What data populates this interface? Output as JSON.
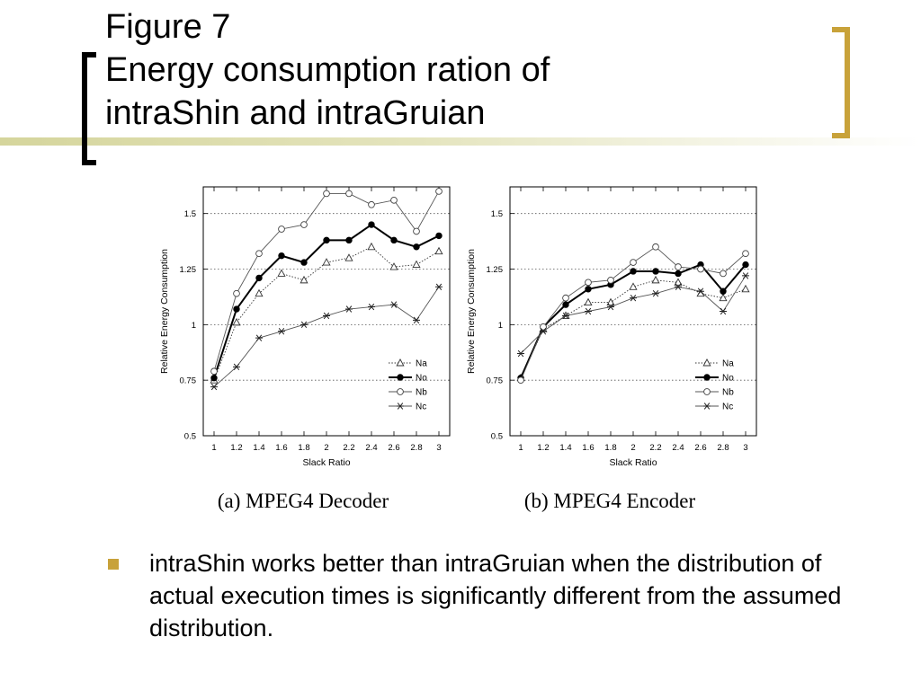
{
  "slide": {
    "title_line1": "Figure 7",
    "title_line2": "Energy consumption ration of",
    "title_line3": "intraShin and intraGruian",
    "bullet_text": "intraShin works better than intraGruian when the distribution of actual execution times is significantly different from the assumed distribution.",
    "colors": {
      "accent": "#c8a23a",
      "line": "#d5d59c"
    }
  },
  "chart_data": [
    {
      "type": "line",
      "caption": "(a) MPEG4 Decoder",
      "xlabel": "Slack Ratio",
      "ylabel": "Relative Energy Consumption",
      "x": [
        1,
        1.2,
        1.4,
        1.6,
        1.8,
        2,
        2.2,
        2.4,
        2.6,
        2.8,
        3
      ],
      "xticks": [
        "1",
        "1.2",
        "1.4",
        "1.6",
        "1.8",
        "2",
        "2.2",
        "2.4",
        "2.6",
        "2.8",
        "3"
      ],
      "yticks": [
        "0.5",
        "0.75",
        "1",
        "1.25",
        "1.5"
      ],
      "ylim": [
        0.5,
        1.62
      ],
      "grid": "horizontal dotted",
      "legend": "right",
      "series": [
        {
          "name": "Na",
          "marker": "triangle",
          "style": "dotted",
          "values": [
            0.75,
            1.01,
            1.14,
            1.23,
            1.2,
            1.28,
            1.3,
            1.35,
            1.26,
            1.27,
            1.33
          ]
        },
        {
          "name": "No",
          "marker": "filled-circle",
          "style": "solid-bold",
          "values": [
            0.76,
            1.07,
            1.21,
            1.31,
            1.28,
            1.38,
            1.38,
            1.45,
            1.38,
            1.35,
            1.4
          ]
        },
        {
          "name": "Nb",
          "marker": "open-circle",
          "style": "solid",
          "values": [
            0.79,
            1.14,
            1.32,
            1.43,
            1.45,
            1.59,
            1.59,
            1.54,
            1.56,
            1.42,
            1.6
          ]
        },
        {
          "name": "Nc",
          "marker": "asterisk",
          "style": "solid",
          "values": [
            0.72,
            0.81,
            0.94,
            0.97,
            1.0,
            1.04,
            1.07,
            1.08,
            1.09,
            1.02,
            1.17
          ]
        }
      ]
    },
    {
      "type": "line",
      "caption": "(b) MPEG4 Encoder",
      "xlabel": "Slack Ratio",
      "ylabel": "Relative Energy Consumption",
      "x": [
        1,
        1.2,
        1.4,
        1.6,
        1.8,
        2,
        2.2,
        2.4,
        2.6,
        2.8,
        3
      ],
      "xticks": [
        "1",
        "1.2",
        "1.4",
        "1.6",
        "1.8",
        "2",
        "2.2",
        "2.4",
        "2.6",
        "2.8",
        "3"
      ],
      "yticks": [
        "0.5",
        "0.75",
        "1",
        "1.25",
        "1.5"
      ],
      "ylim": [
        0.5,
        1.62
      ],
      "grid": "horizontal dotted",
      "legend": "right",
      "series": [
        {
          "name": "Na",
          "marker": "triangle",
          "style": "dotted",
          "values": [
            0.76,
            0.98,
            1.04,
            1.1,
            1.1,
            1.17,
            1.2,
            1.19,
            1.14,
            1.12,
            1.16
          ]
        },
        {
          "name": "No",
          "marker": "filled-circle",
          "style": "solid-bold",
          "values": [
            0.76,
            0.99,
            1.09,
            1.16,
            1.18,
            1.24,
            1.24,
            1.23,
            1.27,
            1.15,
            1.27
          ]
        },
        {
          "name": "Nb",
          "marker": "open-circle",
          "style": "solid",
          "values": [
            0.75,
            0.99,
            1.12,
            1.19,
            1.2,
            1.28,
            1.35,
            1.26,
            1.25,
            1.23,
            1.32
          ]
        },
        {
          "name": "Nc",
          "marker": "asterisk",
          "style": "solid",
          "values": [
            0.87,
            0.97,
            1.04,
            1.06,
            1.08,
            1.12,
            1.14,
            1.17,
            1.15,
            1.06,
            1.22
          ]
        }
      ]
    }
  ]
}
